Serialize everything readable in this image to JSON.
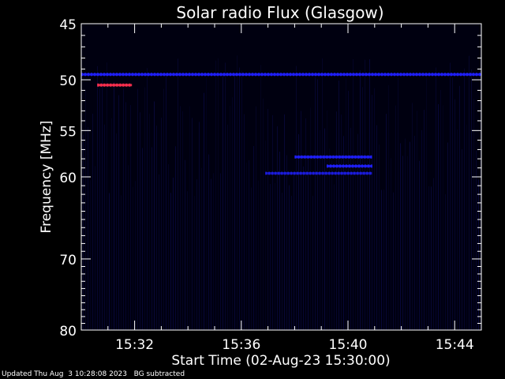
{
  "chart_data": {
    "type": "heatmap",
    "title": "Solar radio Flux (Glasgow)",
    "xlabel": "Start Time (02-Aug-23 15:30:00)",
    "ylabel": "Frequency [MHz]",
    "x_ticks": [
      "15:32",
      "15:36",
      "15:40",
      "15:44"
    ],
    "x_tick_minutes": [
      2,
      6,
      10,
      14
    ],
    "xlim_minutes": [
      0,
      15
    ],
    "y_scale": "log",
    "y_ticks": [
      45,
      50,
      55,
      60,
      70,
      80
    ],
    "ylim": [
      45,
      80
    ],
    "background_color": "#000010",
    "signal_color": "#2020ff",
    "bright_color": "#ff3050",
    "features": [
      {
        "name": "interference-band",
        "t_start": 0,
        "t_end": 15,
        "freq": 49.5,
        "intensity": "medium"
      },
      {
        "name": "rfi-spot",
        "t_start": 0.6,
        "t_end": 1.9,
        "freq": 50.5,
        "intensity": "high"
      },
      {
        "name": "burst-lane-1",
        "t_start": 8.0,
        "t_end": 10.9,
        "freq": 57.8,
        "intensity": "medium"
      },
      {
        "name": "burst-lane-2",
        "t_start": 9.2,
        "t_end": 10.9,
        "freq": 58.8,
        "intensity": "medium"
      },
      {
        "name": "burst-lane-3",
        "t_start": 6.9,
        "t_end": 10.9,
        "freq": 59.6,
        "intensity": "low"
      }
    ]
  },
  "footer": {
    "updated": "Updated Thu Aug  3 10:28:08 2023",
    "note": "BG subtracted"
  }
}
